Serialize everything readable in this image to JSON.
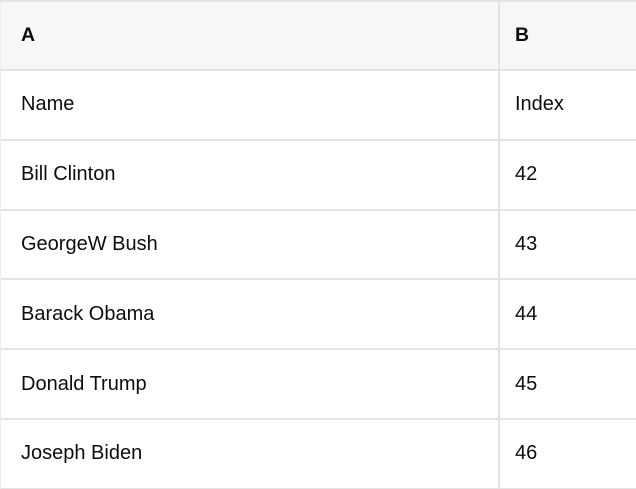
{
  "colors": {
    "header_bg": "#f7f7f7",
    "border": "#e3e3e3",
    "text": "#0d0d0d"
  },
  "table": {
    "column_headers": [
      "A",
      "B"
    ],
    "rows": [
      [
        "Name",
        "Index"
      ],
      [
        "Bill Clinton",
        "42"
      ],
      [
        "GeorgeW Bush",
        "43"
      ],
      [
        "Barack Obama",
        "44"
      ],
      [
        "Donald Trump",
        "45"
      ],
      [
        "Joseph Biden",
        "46"
      ]
    ]
  }
}
